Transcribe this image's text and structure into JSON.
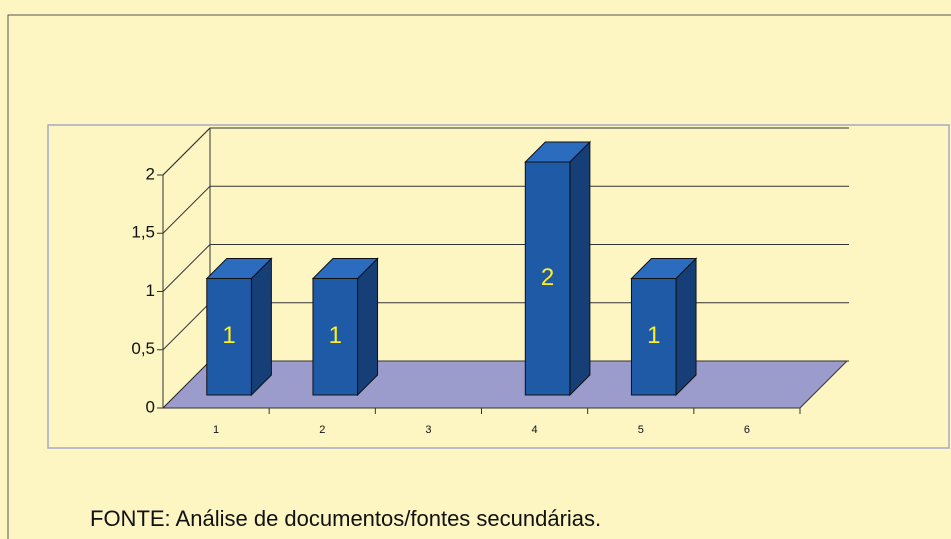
{
  "chart_data": {
    "type": "bar3d",
    "categories": [
      "1",
      "2",
      "3",
      "4",
      "5",
      "6"
    ],
    "values": [
      1,
      1,
      null,
      2,
      1,
      null
    ],
    "color": "#1f5aa6",
    "ylim": [
      0,
      2
    ],
    "yticks": [
      0,
      {
        "value": 0.5,
        "label": "0,5"
      },
      1,
      {
        "value": 1.5,
        "label": "1,5"
      },
      2
    ],
    "grid": true,
    "source": "FONTE: Análise de documentos/fontes secundárias."
  }
}
